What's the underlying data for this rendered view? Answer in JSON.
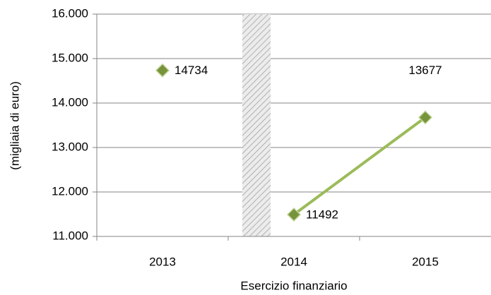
{
  "chart_data": {
    "type": "line",
    "categories": [
      "2013",
      "2014",
      "2015"
    ],
    "series": [
      {
        "color": "#77933c",
        "line_color": "#9bbb59",
        "values": [
          14734,
          null,
          null
        ]
      },
      {
        "color": "#77933c",
        "line_color": "#9bbb59",
        "values": [
          null,
          11492,
          13677
        ]
      }
    ],
    "ylim": [
      11000,
      16000
    ],
    "yticks": [
      {
        "value": 11000,
        "label": "11.000"
      },
      {
        "value": 12000,
        "label": "12.000"
      },
      {
        "value": 13000,
        "label": "13.000"
      },
      {
        "value": 14000,
        "label": "14.000"
      },
      {
        "value": 15000,
        "label": "15.000"
      },
      {
        "value": 16000,
        "label": "16.000"
      }
    ],
    "y_label": "(migliaia di euro)",
    "x_label": "Esercizio finanziario",
    "grid": true
  }
}
